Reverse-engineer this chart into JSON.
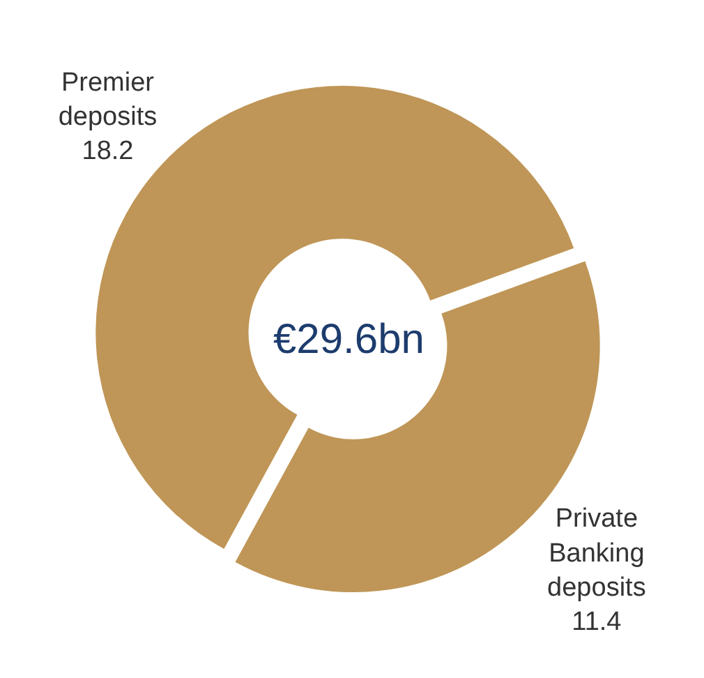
{
  "chart_data": {
    "type": "donut",
    "categories": [
      "Private Banking deposits",
      "Premier deposits"
    ],
    "values": [
      11.4,
      18.2
    ],
    "colors": [
      "#bf9657",
      "#bf9657"
    ],
    "data_labels": true,
    "legend": false,
    "annotations": [
      "€29.6bn"
    ]
  }
}
